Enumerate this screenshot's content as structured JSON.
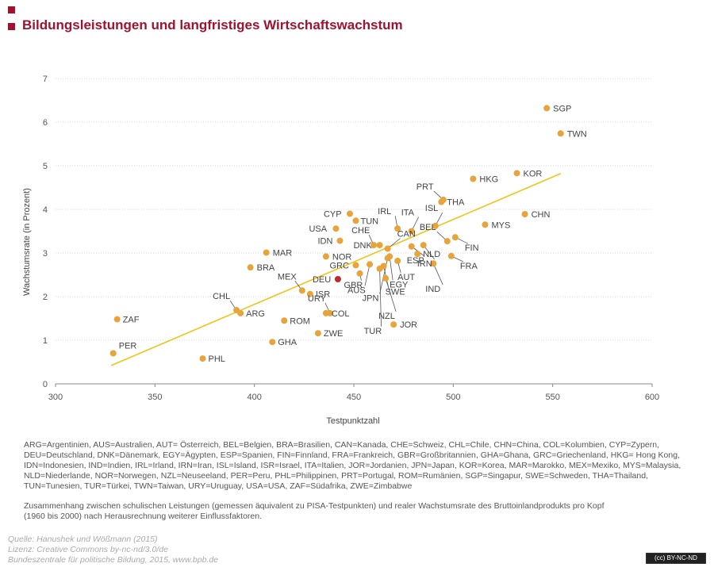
{
  "header": {
    "title": "Bildungsleistungen und langfristiges Wirtschaftswachstum"
  },
  "colors": {
    "accent": "#a0122e",
    "point": "#e8a33a",
    "highlight": "#c0282d",
    "trend": "#f0c419"
  },
  "chart_data": {
    "type": "scatter",
    "xlabel": "Testpunktzahl",
    "ylabel": "Wachstumsrate (in Prozent)",
    "xlim": [
      300,
      600
    ],
    "ylim": [
      0,
      7
    ],
    "xticks": [
      "300",
      "350",
      "400",
      "450",
      "500",
      "550",
      "600"
    ],
    "yticks": [
      "0",
      "1",
      "2",
      "3",
      "4",
      "5",
      "6",
      "7"
    ],
    "grid": "horizontal",
    "trendline": [
      [
        328,
        0.42
      ],
      [
        554,
        4.82
      ]
    ],
    "highlight": "DEU",
    "points": [
      {
        "label": "SGP",
        "x": 547,
        "y": 6.32
      },
      {
        "label": "TWN",
        "x": 554,
        "y": 5.74
      },
      {
        "label": "KOR",
        "x": 532,
        "y": 4.83
      },
      {
        "label": "HKG",
        "x": 510,
        "y": 4.7
      },
      {
        "label": "THA",
        "x": 494,
        "y": 4.17
      },
      {
        "label": "PRT",
        "x": 495,
        "y": 4.22
      },
      {
        "label": "CHN",
        "x": 536,
        "y": 3.89
      },
      {
        "label": "MYS",
        "x": 516,
        "y": 3.65
      },
      {
        "label": "CYP",
        "x": 448,
        "y": 3.9
      },
      {
        "label": "TUN",
        "x": 451,
        "y": 3.74
      },
      {
        "label": "IRL",
        "x": 472,
        "y": 3.56
      },
      {
        "label": "ITA",
        "x": 479,
        "y": 3.5
      },
      {
        "label": "ISL",
        "x": 491,
        "y": 3.62
      },
      {
        "label": "USA",
        "x": 441,
        "y": 3.56
      },
      {
        "label": "IDN",
        "x": 443,
        "y": 3.28
      },
      {
        "label": "CHE",
        "x": 460,
        "y": 3.18
      },
      {
        "label": "CAN",
        "x": 467,
        "y": 3.1
      },
      {
        "label": "DNK",
        "x": 463,
        "y": 3.18
      },
      {
        "label": "BEL",
        "x": 497,
        "y": 3.27
      },
      {
        "label": "FIN",
        "x": 501,
        "y": 3.36
      },
      {
        "label": "FRA",
        "x": 499,
        "y": 2.93
      },
      {
        "label": "NLD",
        "x": 482,
        "y": 2.98
      },
      {
        "label": "ESP",
        "x": 479,
        "y": 3.15
      },
      {
        "label": "IRN",
        "x": 485,
        "y": 3.18
      },
      {
        "label": "IND",
        "x": 490,
        "y": 2.76
      },
      {
        "label": "MAR",
        "x": 406,
        "y": 3.01
      },
      {
        "label": "NOR",
        "x": 436,
        "y": 2.92
      },
      {
        "label": "BRA",
        "x": 398,
        "y": 2.67
      },
      {
        "label": "GRC",
        "x": 451,
        "y": 2.72
      },
      {
        "label": "AUT",
        "x": 472,
        "y": 2.82
      },
      {
        "label": "EGY",
        "x": 468,
        "y": 2.92
      },
      {
        "label": "DEU",
        "x": 442,
        "y": 2.4
      },
      {
        "label": "GBR",
        "x": 453,
        "y": 2.53
      },
      {
        "label": "AUS",
        "x": 458,
        "y": 2.74
      },
      {
        "label": "SWE",
        "x": 465,
        "y": 2.7
      },
      {
        "label": "NZL",
        "x": 466,
        "y": 2.42
      },
      {
        "label": "MEX",
        "x": 424,
        "y": 2.14
      },
      {
        "label": "ISR",
        "x": 428,
        "y": 2.06
      },
      {
        "label": "URY",
        "x": 438,
        "y": 1.62
      },
      {
        "label": "COL",
        "x": 436,
        "y": 1.62
      },
      {
        "label": "JPN",
        "x": 467,
        "y": 2.88
      },
      {
        "label": "TUR",
        "x": 463,
        "y": 2.64
      },
      {
        "label": "JOR",
        "x": 470,
        "y": 1.36
      },
      {
        "label": "CHL",
        "x": 391,
        "y": 1.69
      },
      {
        "label": "ARG",
        "x": 393,
        "y": 1.62
      },
      {
        "label": "ROM",
        "x": 415,
        "y": 1.45
      },
      {
        "label": "ZWE",
        "x": 432,
        "y": 1.16
      },
      {
        "label": "GHA",
        "x": 409,
        "y": 0.96
      },
      {
        "label": "ZAF",
        "x": 331,
        "y": 1.48
      },
      {
        "label": "PER",
        "x": 329,
        "y": 0.7
      },
      {
        "label": "PHL",
        "x": 374,
        "y": 0.58
      }
    ]
  },
  "legend_text": "ARG=Argentinien, AUS=Australien, AUT= Österreich, BEL=Belgien, BRA=Brasilien, CAN=Kanada, CHE=Schweiz, CHL=Chile, CHN=China, COL=Kolumbien, CYP=Zypern, DEU=Deutschland, DNK=Dänemark, EGY=Ägypten, ESP=Spanien, FIN=Finnland, FRA=Frankreich, GBR=Großbritannien, GHA=Ghana, GRC=Griechenland, HKG= Hong Kong, IDN=Indonesien, IND=Indien, IRL=Irland, IRN=Iran, ISL=Island, ISR=Israel, ITA=Italien, JOR=Jordanien, JPN=Japan, KOR=Korea, MAR=Marokko, MEX=Mexiko, MYS=Malaysia, NLD=Niederlande, NOR=Norwegen, NZL=Neuseeland, PER=Peru, PHL=Philippinen, PRT=Portugal, ROM=Rumänien, SGP=Singapur, SWE=Schweden, THA=Thailand, TUN=Tunesien, TUR=Türkei, TWN=Taiwan, URY=Uruguay, USA=USA, ZAF=Südafrika, ZWE=Zimbabwe",
  "description": "Zusammenhang zwischen schulischen Leistungen (gemessen äquivalent zu PISA-Testpunkten) und realer Wachstumsrate des Bruttoinlandprodukts pro Kopf (1960 bis 2000) nach Herausrechnung weiterer Einflussfaktoren.",
  "footer": {
    "source": "Quelle: Hanushek und Wößmann (2015)",
    "license": "Lizenz: Creative Commons by-nc-nd/3.0/de",
    "publisher": "Bundeszentrale für politische Bildung, 2015, www.bpb.de",
    "badge": "(cc) BY-NC-ND"
  }
}
